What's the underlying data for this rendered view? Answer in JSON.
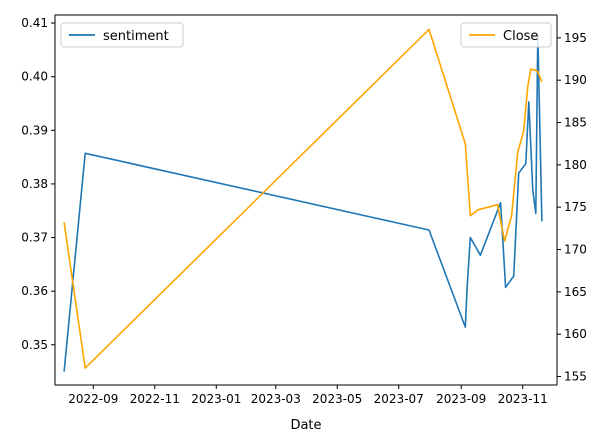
{
  "chart_data": {
    "type": "line",
    "xlabel": "Date",
    "x_ticks": [
      "2022-09",
      "2022-11",
      "2023-01",
      "2023-03",
      "2023-05",
      "2023-07",
      "2023-09",
      "2023-11"
    ],
    "x_tick_dates": [
      "2022-09-01",
      "2022-11-01",
      "2023-01-01",
      "2023-03-01",
      "2023-05-01",
      "2023-07-01",
      "2023-09-01",
      "2023-11-01"
    ],
    "xlim": [
      "2022-07-25",
      "2023-12-05"
    ],
    "y_left": {
      "ticks": [
        "0.35",
        "0.36",
        "0.37",
        "0.38",
        "0.39",
        "0.40",
        "0.41"
      ],
      "tick_values": [
        0.35,
        0.36,
        0.37,
        0.38,
        0.39,
        0.4,
        0.41
      ],
      "ylim": [
        0.3425,
        0.4115
      ]
    },
    "y_right": {
      "ticks": [
        "155",
        "160",
        "165",
        "170",
        "175",
        "180",
        "185",
        "190",
        "195"
      ],
      "tick_values": [
        155,
        160,
        165,
        170,
        175,
        180,
        185,
        190,
        195
      ],
      "ylim": [
        154,
        197.7
      ]
    },
    "series": [
      {
        "name": "sentiment",
        "axis": "left",
        "color": "#1f77b4",
        "legend_position": "top-left",
        "x": [
          "2022-08-03",
          "2022-08-24",
          "2023-07-31",
          "2023-09-05",
          "2023-09-07",
          "2023-09-10",
          "2023-09-20",
          "2023-10-10",
          "2023-10-15",
          "2023-10-23",
          "2023-10-28",
          "2023-11-04",
          "2023-11-07",
          "2023-11-11",
          "2023-11-14",
          "2023-11-16",
          "2023-11-20"
        ],
        "values": [
          0.345,
          0.3857,
          0.3714,
          0.3533,
          0.3612,
          0.37,
          0.3667,
          0.3765,
          0.3607,
          0.3628,
          0.382,
          0.3838,
          0.3953,
          0.3788,
          0.3745,
          0.408,
          0.373
        ]
      },
      {
        "name": "Close",
        "axis": "right",
        "color": "#ffa500",
        "legend_position": "top-right",
        "x": [
          "2022-08-03",
          "2022-08-24",
          "2023-07-31",
          "2023-09-05",
          "2023-09-10",
          "2023-09-18",
          "2023-10-07",
          "2023-10-14",
          "2023-10-21",
          "2023-10-27",
          "2023-11-02",
          "2023-11-06",
          "2023-11-09",
          "2023-11-13",
          "2023-11-16",
          "2023-11-20"
        ],
        "values": [
          173.2,
          156.0,
          196.0,
          182.5,
          174.0,
          174.7,
          175.3,
          171.0,
          174.0,
          181.5,
          184.0,
          189.3,
          191.3,
          191.2,
          191.0,
          189.8
        ]
      }
    ]
  }
}
